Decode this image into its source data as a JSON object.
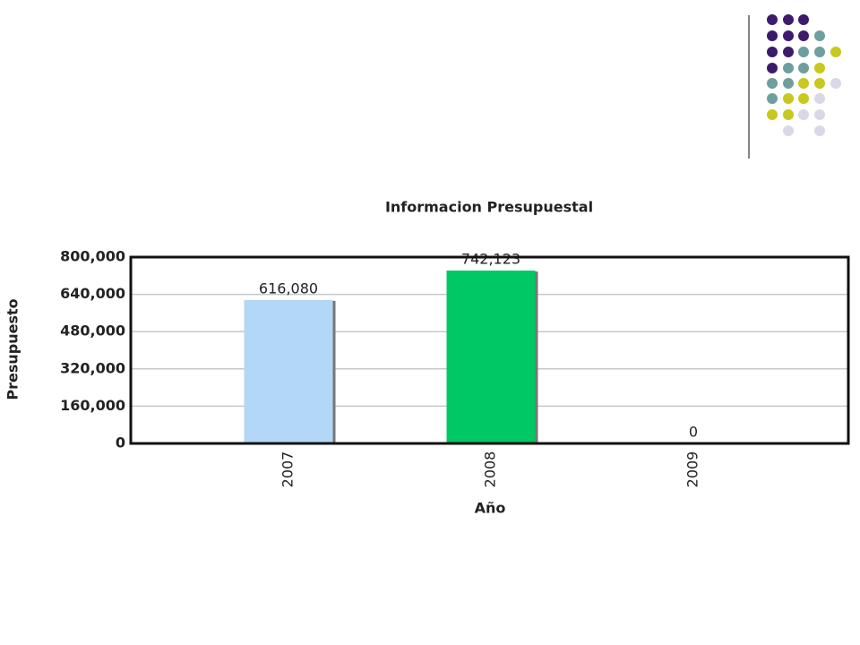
{
  "chart_data": {
    "type": "bar",
    "title": "Informacion Presupuestal",
    "x_label": "Año",
    "y_label": "Presupuesto",
    "categories": [
      "2007",
      "2008",
      "2009"
    ],
    "values": [
      616080,
      742123,
      0
    ],
    "value_labels": [
      "616,080",
      "742,123",
      "0"
    ],
    "colors": [
      "#b3d7f7",
      "#00c864",
      "#b3d7f7"
    ],
    "ylim": [
      0,
      800000
    ],
    "yticks": [
      0,
      {
        "value": 160000,
        "label": "160,000"
      },
      {
        "value": 320000,
        "label": "320,000"
      },
      {
        "value": 480000,
        "label": "480,000"
      },
      {
        "value": 640000,
        "label": "640,000"
      },
      {
        "value": 800000,
        "label": "800,000"
      }
    ],
    "grid": true
  }
}
